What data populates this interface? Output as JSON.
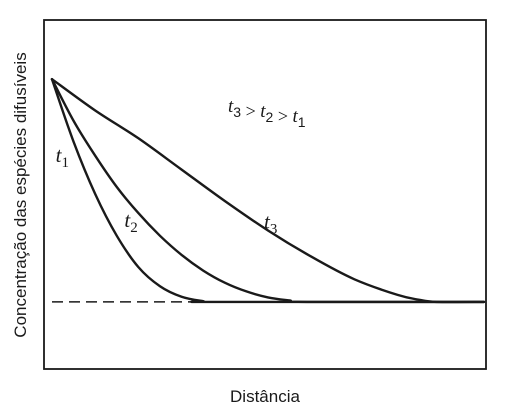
{
  "chart_data": {
    "type": "line",
    "xlabel": "Distância",
    "ylabel": "Concentração das espécies difusíveis",
    "annotation": {
      "parts": [
        {
          "var": "t",
          "sub": "3"
        },
        {
          "op": " > "
        },
        {
          "var": "t",
          "sub": "2"
        },
        {
          "op": " > "
        },
        {
          "var": "t",
          "sub": "1"
        }
      ]
    },
    "xlim": [
      0,
      100
    ],
    "ylim": [
      0,
      100
    ],
    "grid": false,
    "baseline": {
      "value": 19,
      "style": "dashed"
    },
    "series": [
      {
        "name_var": "t",
        "name_sub": "1",
        "x": [
          0,
          5,
          10,
          15,
          20,
          25,
          30,
          35,
          37.5,
          100
        ],
        "y": [
          83,
          65,
          50,
          38,
          29,
          23.5,
          20.5,
          19.2,
          19,
          19
        ]
      },
      {
        "name_var": "t",
        "name_sub": "2",
        "x": [
          0,
          5,
          10,
          15,
          20,
          25,
          30,
          35,
          40,
          45,
          50,
          55,
          59,
          100
        ],
        "y": [
          83,
          71,
          61,
          52,
          44.5,
          38,
          32.5,
          28,
          24.5,
          22,
          20.3,
          19.4,
          19,
          19
        ]
      },
      {
        "name_var": "t",
        "name_sub": "3",
        "x": [
          0,
          10,
          20,
          30,
          40,
          50,
          60,
          70,
          80,
          85,
          89,
          100
        ],
        "y": [
          83,
          74,
          66,
          57,
          48,
          39.5,
          32,
          25.5,
          21,
          19.6,
          19,
          19
        ]
      }
    ]
  }
}
